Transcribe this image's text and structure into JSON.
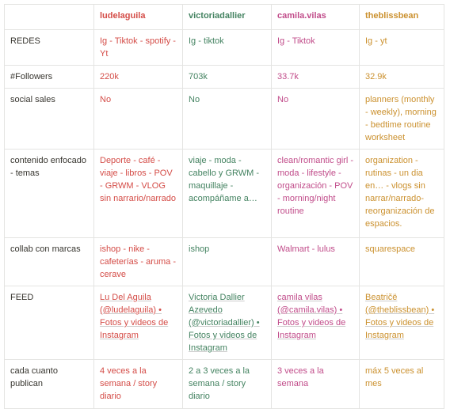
{
  "table": {
    "header": [
      "ludelaguila",
      "victoriadallier",
      "camila.vilas",
      "theblissbean"
    ],
    "rows": [
      {
        "label": "REDES",
        "cells": [
          "Ig - Tiktok - spotify - Yt",
          "Ig - tiktok",
          "Ig - Tiktok",
          "Ig - yt"
        ]
      },
      {
        "label": "#Followers",
        "cells": [
          "220k",
          "703k",
          "33.7k",
          "32.9k"
        ]
      },
      {
        "label": "social sales",
        "cells": [
          "No",
          "No",
          "No",
          "planners (monthly - weekly), morning - bedtime routine worksheet"
        ]
      },
      {
        "label": "contenido enfocado - temas",
        "cells": [
          "Deporte - café - viaje - libros - POV - GRWM - VLOG sin narrario/narrado",
          "viaje - moda - cabello y GRWM - maquillaje - acompáñame a…",
          "clean/romantic girl - moda - lifestyle - organización - POV - morning/night routine",
          "organization - rutinas - un dia en… - vlogs sin narrar/narrado-reorganización de espacios."
        ]
      },
      {
        "label": "collab con marcas",
        "cells": [
          "ishop - nike - cafeterías - aruma - cerave",
          "ishop",
          "Walmart - lulus",
          "squarespace"
        ]
      },
      {
        "label": "FEED",
        "cells": [
          "Lu Del Aguila (@ludelaguila) • Fotos y videos de Instagram",
          "Victoria Dallier Azevedo (@victoriadallier) • Fotos y videos de Instagram",
          "camila vilas (@camila.vilas) • Fotos y videos de Instagram",
          "Beatričë (@theblissbean) • Fotos y videos de Instagram"
        ]
      },
      {
        "label": "cada cuanto publican",
        "cells": [
          "4 veces a la semana / story diario",
          "2 a 3 veces a la semana / story diario",
          "3 veces a la semana",
          "máx 5 veces al mes"
        ]
      }
    ]
  }
}
